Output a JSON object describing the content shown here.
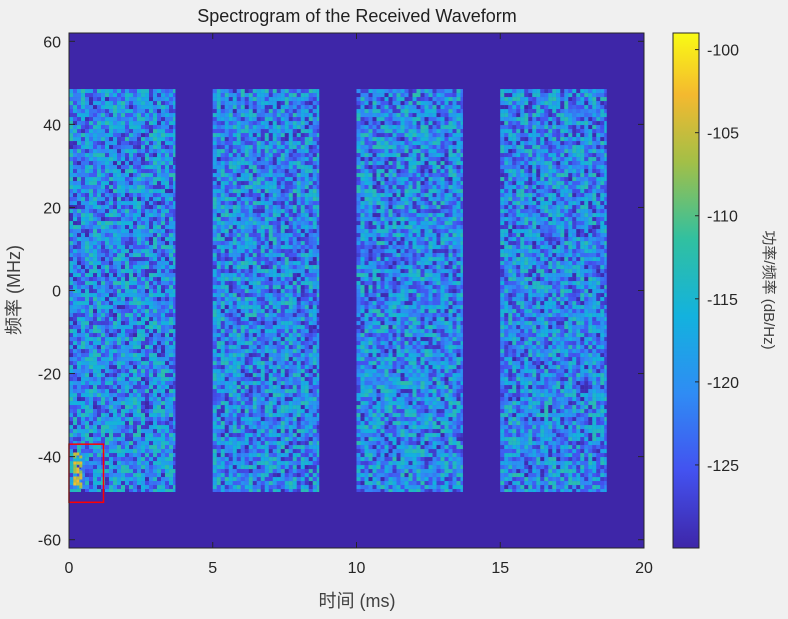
{
  "chart_data": {
    "type": "heatmap",
    "title": "Spectrogram of the Received Waveform",
    "xlabel": "时间 (ms)",
    "ylabel": "频率 (MHz)",
    "xlim": [
      0,
      20
    ],
    "ylim": [
      -62,
      62
    ],
    "x_ticks": [
      0,
      5,
      10,
      15,
      20
    ],
    "y_ticks": [
      60,
      40,
      20,
      0,
      -20,
      -40,
      -60
    ],
    "grid": false,
    "background_level_db": -130,
    "signal_bands": [
      {
        "t_start": 0.0,
        "t_end": 3.7,
        "f_low": -48.5,
        "f_high": 48.5
      },
      {
        "t_start": 5.0,
        "t_end": 8.7,
        "f_low": -48.5,
        "f_high": 48.5
      },
      {
        "t_start": 10.0,
        "t_end": 13.7,
        "f_low": -48.5,
        "f_high": 48.5
      },
      {
        "t_start": 15.0,
        "t_end": 18.7,
        "f_low": -48.5,
        "f_high": 48.5
      }
    ],
    "signal_level_db_range": [
      -130,
      -112
    ],
    "highlight": {
      "t_start": 0.0,
      "t_end": 1.2,
      "f_low": -51,
      "f_high": -37,
      "peak_db": -102,
      "color": "#ff0000"
    },
    "colorbar": {
      "label": "功率/频率 (dB/Hz)",
      "range": [
        -130,
        -99
      ],
      "ticks": [
        -100,
        -105,
        -110,
        -115,
        -120,
        -125
      ],
      "colormap": "parula"
    }
  }
}
